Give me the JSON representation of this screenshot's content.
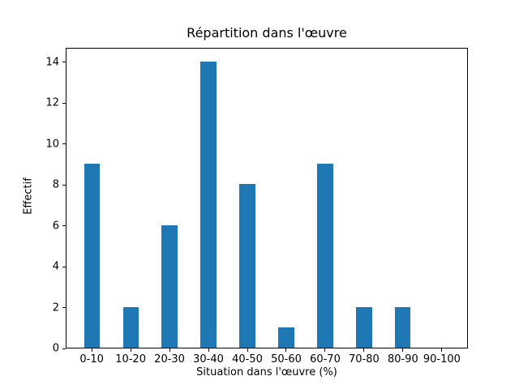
{
  "figure": {
    "background": "#ffffff"
  },
  "chart_data": {
    "type": "bar",
    "title": "Répartition dans l'œuvre",
    "xlabel": "Situation dans l'œuvre (%)",
    "ylabel": "Effectif",
    "categories": [
      "0-10",
      "10-20",
      "20-30",
      "30-40",
      "40-50",
      "50-60",
      "60-70",
      "70-80",
      "80-90",
      "90-100"
    ],
    "values": [
      9,
      2,
      6,
      14,
      8,
      1,
      9,
      2,
      2,
      0
    ],
    "yticks": [
      0,
      2,
      4,
      6,
      8,
      10,
      12,
      14
    ],
    "ylim": [
      0,
      14.7
    ],
    "xlim": [
      -0.67,
      9.67
    ],
    "bar_width_units": 0.4,
    "bar_color": "#1f77b4",
    "axis_color": "#000000",
    "text_color": "#000000",
    "grid": false,
    "legend_position": "none"
  }
}
